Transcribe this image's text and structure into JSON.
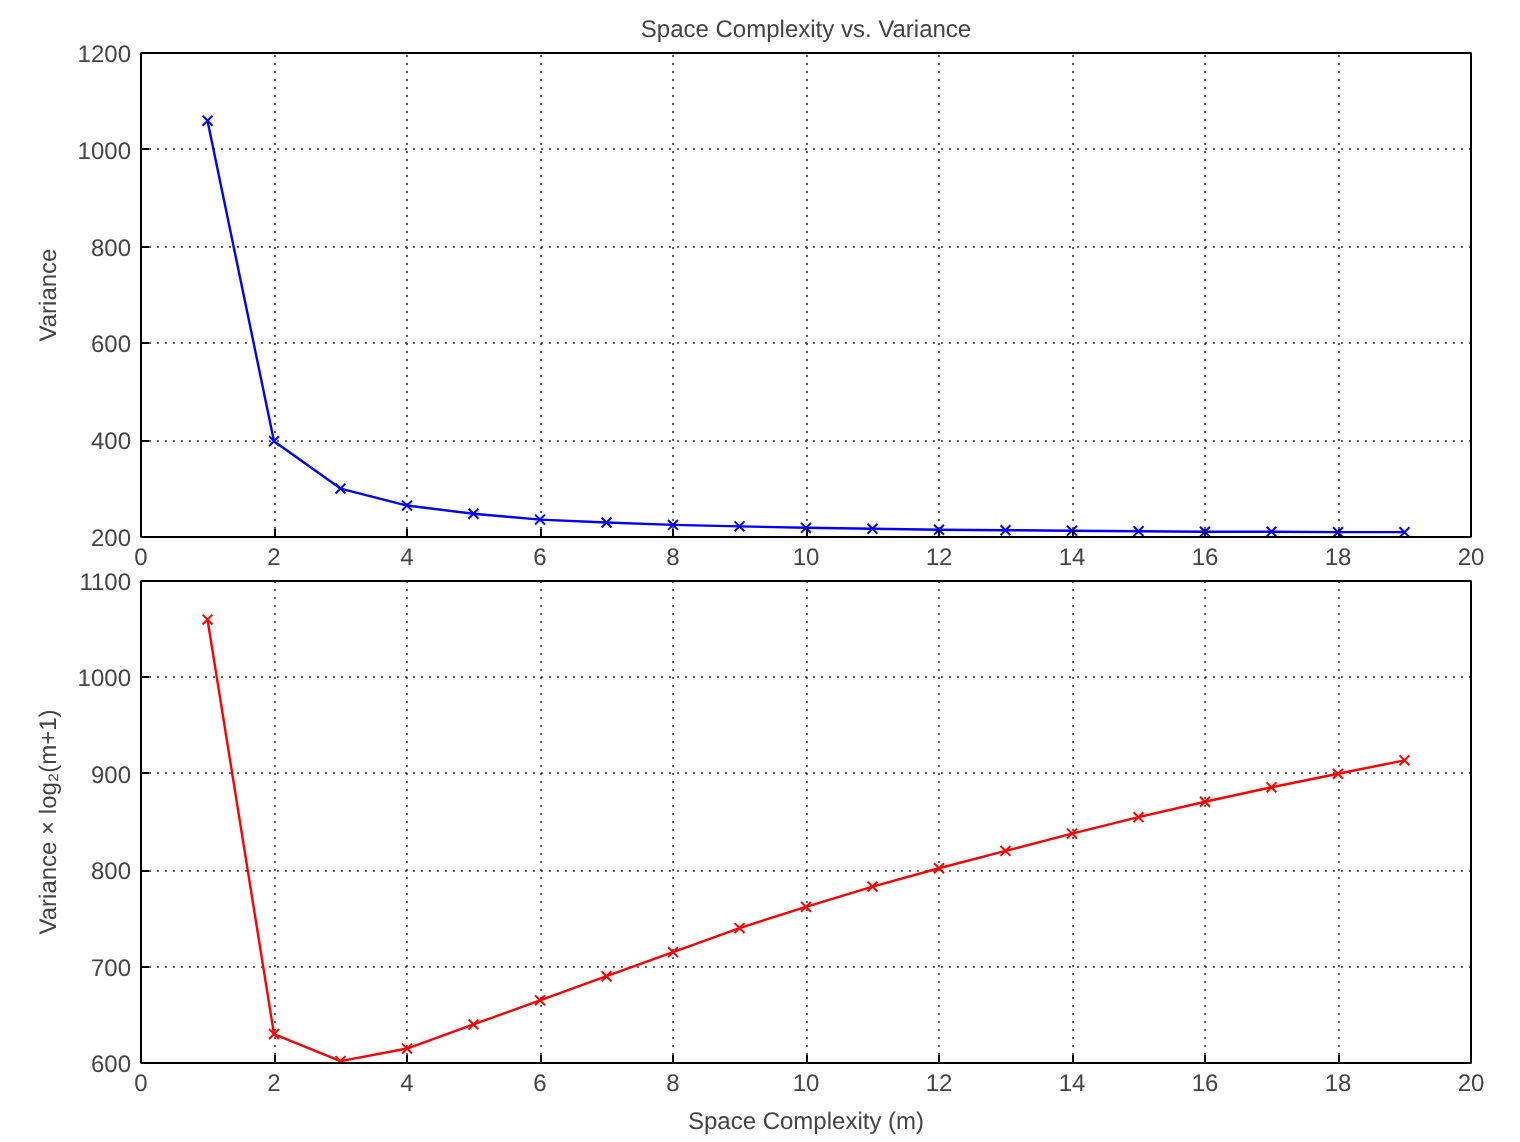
{
  "chart_data": [
    {
      "type": "line",
      "title": "Space Complexity vs. Variance",
      "ylabel": "Variance",
      "x": [
        1,
        2,
        3,
        4,
        5,
        6,
        7,
        8,
        9,
        10,
        11,
        12,
        13,
        14,
        15,
        16,
        17,
        18,
        19
      ],
      "series": [
        {
          "color": "#0000ff",
          "values": [
            1060,
            398,
            300,
            265,
            248,
            236,
            230,
            225,
            222,
            219,
            217,
            215,
            214,
            213,
            212,
            211,
            211,
            210,
            210
          ]
        }
      ],
      "xlim": [
        0,
        20
      ],
      "xticks": [
        0,
        2,
        4,
        6,
        8,
        10,
        12,
        14,
        16,
        18,
        20
      ],
      "ylim": [
        200,
        1200
      ],
      "yticks": [
        200,
        400,
        600,
        800,
        1000,
        1200
      ],
      "grid": true,
      "marker": "cross",
      "line_style": "solid"
    },
    {
      "type": "line",
      "xlabel": "Space Complexity (m)",
      "ylabel": "Variance × log₂(m+1)",
      "x": [
        1,
        2,
        3,
        4,
        5,
        6,
        7,
        8,
        9,
        10,
        11,
        12,
        13,
        14,
        15,
        16,
        17,
        18,
        19
      ],
      "series": [
        {
          "color": "#ff0000",
          "values": [
            1060,
            630,
            602,
            615,
            640,
            665,
            690,
            715,
            740,
            762,
            783,
            802,
            820,
            838,
            855,
            871,
            886,
            900,
            914
          ]
        }
      ],
      "xlim": [
        0,
        20
      ],
      "xticks": [
        0,
        2,
        4,
        6,
        8,
        10,
        12,
        14,
        16,
        18,
        20
      ],
      "ylim": [
        600,
        1100
      ],
      "yticks": [
        600,
        700,
        800,
        900,
        1000,
        1100
      ],
      "grid": true,
      "marker": "cross",
      "line_style": "solid"
    }
  ]
}
